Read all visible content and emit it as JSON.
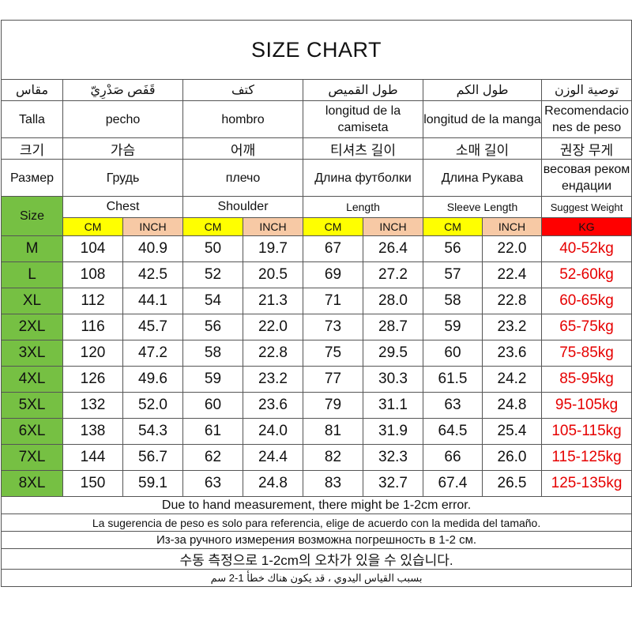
{
  "title": "SIZE CHART",
  "headers": {
    "arabic": [
      "مقاس",
      "قَفَص صَدْرِيّ",
      "كتف",
      "طول القميص",
      "طول الكم",
      "توصية الوزن"
    ],
    "spanish": [
      "Talla",
      "pecho",
      "hombro",
      "longitud de la camiseta",
      "longitud de la manga",
      "Recomendacio nes de peso"
    ],
    "korean": [
      "크기",
      "가슴",
      "어깨",
      "티셔츠 길이",
      "소매 길이",
      "권장 무게"
    ],
    "russian": [
      "Размер",
      "Грудь",
      "плечо",
      "Длина футболки",
      "Длина Рукава",
      "весовая реком ендации"
    ],
    "english": [
      "Size",
      "Chest",
      "Shoulder",
      "Length",
      "Sleeve Length",
      "Suggest Weight"
    ]
  },
  "units": [
    "CM",
    "INCH",
    "CM",
    "INCH",
    "CM",
    "INCH",
    "CM",
    "INCH",
    "KG"
  ],
  "colors": {
    "size_column": "#76c043",
    "cm_unit": "#ffff00",
    "inch_unit": "#f7c9a5",
    "kg_unit": "#ff0000",
    "kg_text": "#e60000"
  },
  "rows": [
    {
      "size": "M",
      "chest_cm": "104",
      "chest_inch": "40.9",
      "shoulder_cm": "50",
      "shoulder_inch": "19.7",
      "length_cm": "67",
      "length_inch": "26.4",
      "sleeve_cm": "56",
      "sleeve_inch": "22.0",
      "weight": "40-52kg"
    },
    {
      "size": "L",
      "chest_cm": "108",
      "chest_inch": "42.5",
      "shoulder_cm": "52",
      "shoulder_inch": "20.5",
      "length_cm": "69",
      "length_inch": "27.2",
      "sleeve_cm": "57",
      "sleeve_inch": "22.4",
      "weight": "52-60kg"
    },
    {
      "size": "XL",
      "chest_cm": "112",
      "chest_inch": "44.1",
      "shoulder_cm": "54",
      "shoulder_inch": "21.3",
      "length_cm": "71",
      "length_inch": "28.0",
      "sleeve_cm": "58",
      "sleeve_inch": "22.8",
      "weight": "60-65kg"
    },
    {
      "size": "2XL",
      "chest_cm": "116",
      "chest_inch": "45.7",
      "shoulder_cm": "56",
      "shoulder_inch": "22.0",
      "length_cm": "73",
      "length_inch": "28.7",
      "sleeve_cm": "59",
      "sleeve_inch": "23.2",
      "weight": "65-75kg"
    },
    {
      "size": "3XL",
      "chest_cm": "120",
      "chest_inch": "47.2",
      "shoulder_cm": "58",
      "shoulder_inch": "22.8",
      "length_cm": "75",
      "length_inch": "29.5",
      "sleeve_cm": "60",
      "sleeve_inch": "23.6",
      "weight": "75-85kg"
    },
    {
      "size": "4XL",
      "chest_cm": "126",
      "chest_inch": "49.6",
      "shoulder_cm": "59",
      "shoulder_inch": "23.2",
      "length_cm": "77",
      "length_inch": "30.3",
      "sleeve_cm": "61.5",
      "sleeve_inch": "24.2",
      "weight": "85-95kg"
    },
    {
      "size": "5XL",
      "chest_cm": "132",
      "chest_inch": "52.0",
      "shoulder_cm": "60",
      "shoulder_inch": "23.6",
      "length_cm": "79",
      "length_inch": "31.1",
      "sleeve_cm": "63",
      "sleeve_inch": "24.8",
      "weight": "95-105kg"
    },
    {
      "size": "6XL",
      "chest_cm": "138",
      "chest_inch": "54.3",
      "shoulder_cm": "61",
      "shoulder_inch": "24.0",
      "length_cm": "81",
      "length_inch": "31.9",
      "sleeve_cm": "64.5",
      "sleeve_inch": "25.4",
      "weight": "105-115kg"
    },
    {
      "size": "7XL",
      "chest_cm": "144",
      "chest_inch": "56.7",
      "shoulder_cm": "62",
      "shoulder_inch": "24.4",
      "length_cm": "82",
      "length_inch": "32.3",
      "sleeve_cm": "66",
      "sleeve_inch": "26.0",
      "weight": "115-125kg"
    },
    {
      "size": "8XL",
      "chest_cm": "150",
      "chest_inch": "59.1",
      "shoulder_cm": "63",
      "shoulder_inch": "24.8",
      "length_cm": "83",
      "length_inch": "32.7",
      "sleeve_cm": "67.4",
      "sleeve_inch": "26.5",
      "weight": "125-135kg"
    }
  ],
  "notes": [
    "Due to hand measurement, there might be 1-2cm error.",
    "La sugerencia de peso es solo para referencia, elige de acuerdo con la medida del tamaño.",
    "Из-за ручного измерения возможна погрешность в 1-2 см.",
    "수동 측정으로 1-2cm의 오차가 있을 수 있습니다.",
    "بسبب القياس اليدوي ، قد يكون هناك خطأ 1-2 سم"
  ]
}
